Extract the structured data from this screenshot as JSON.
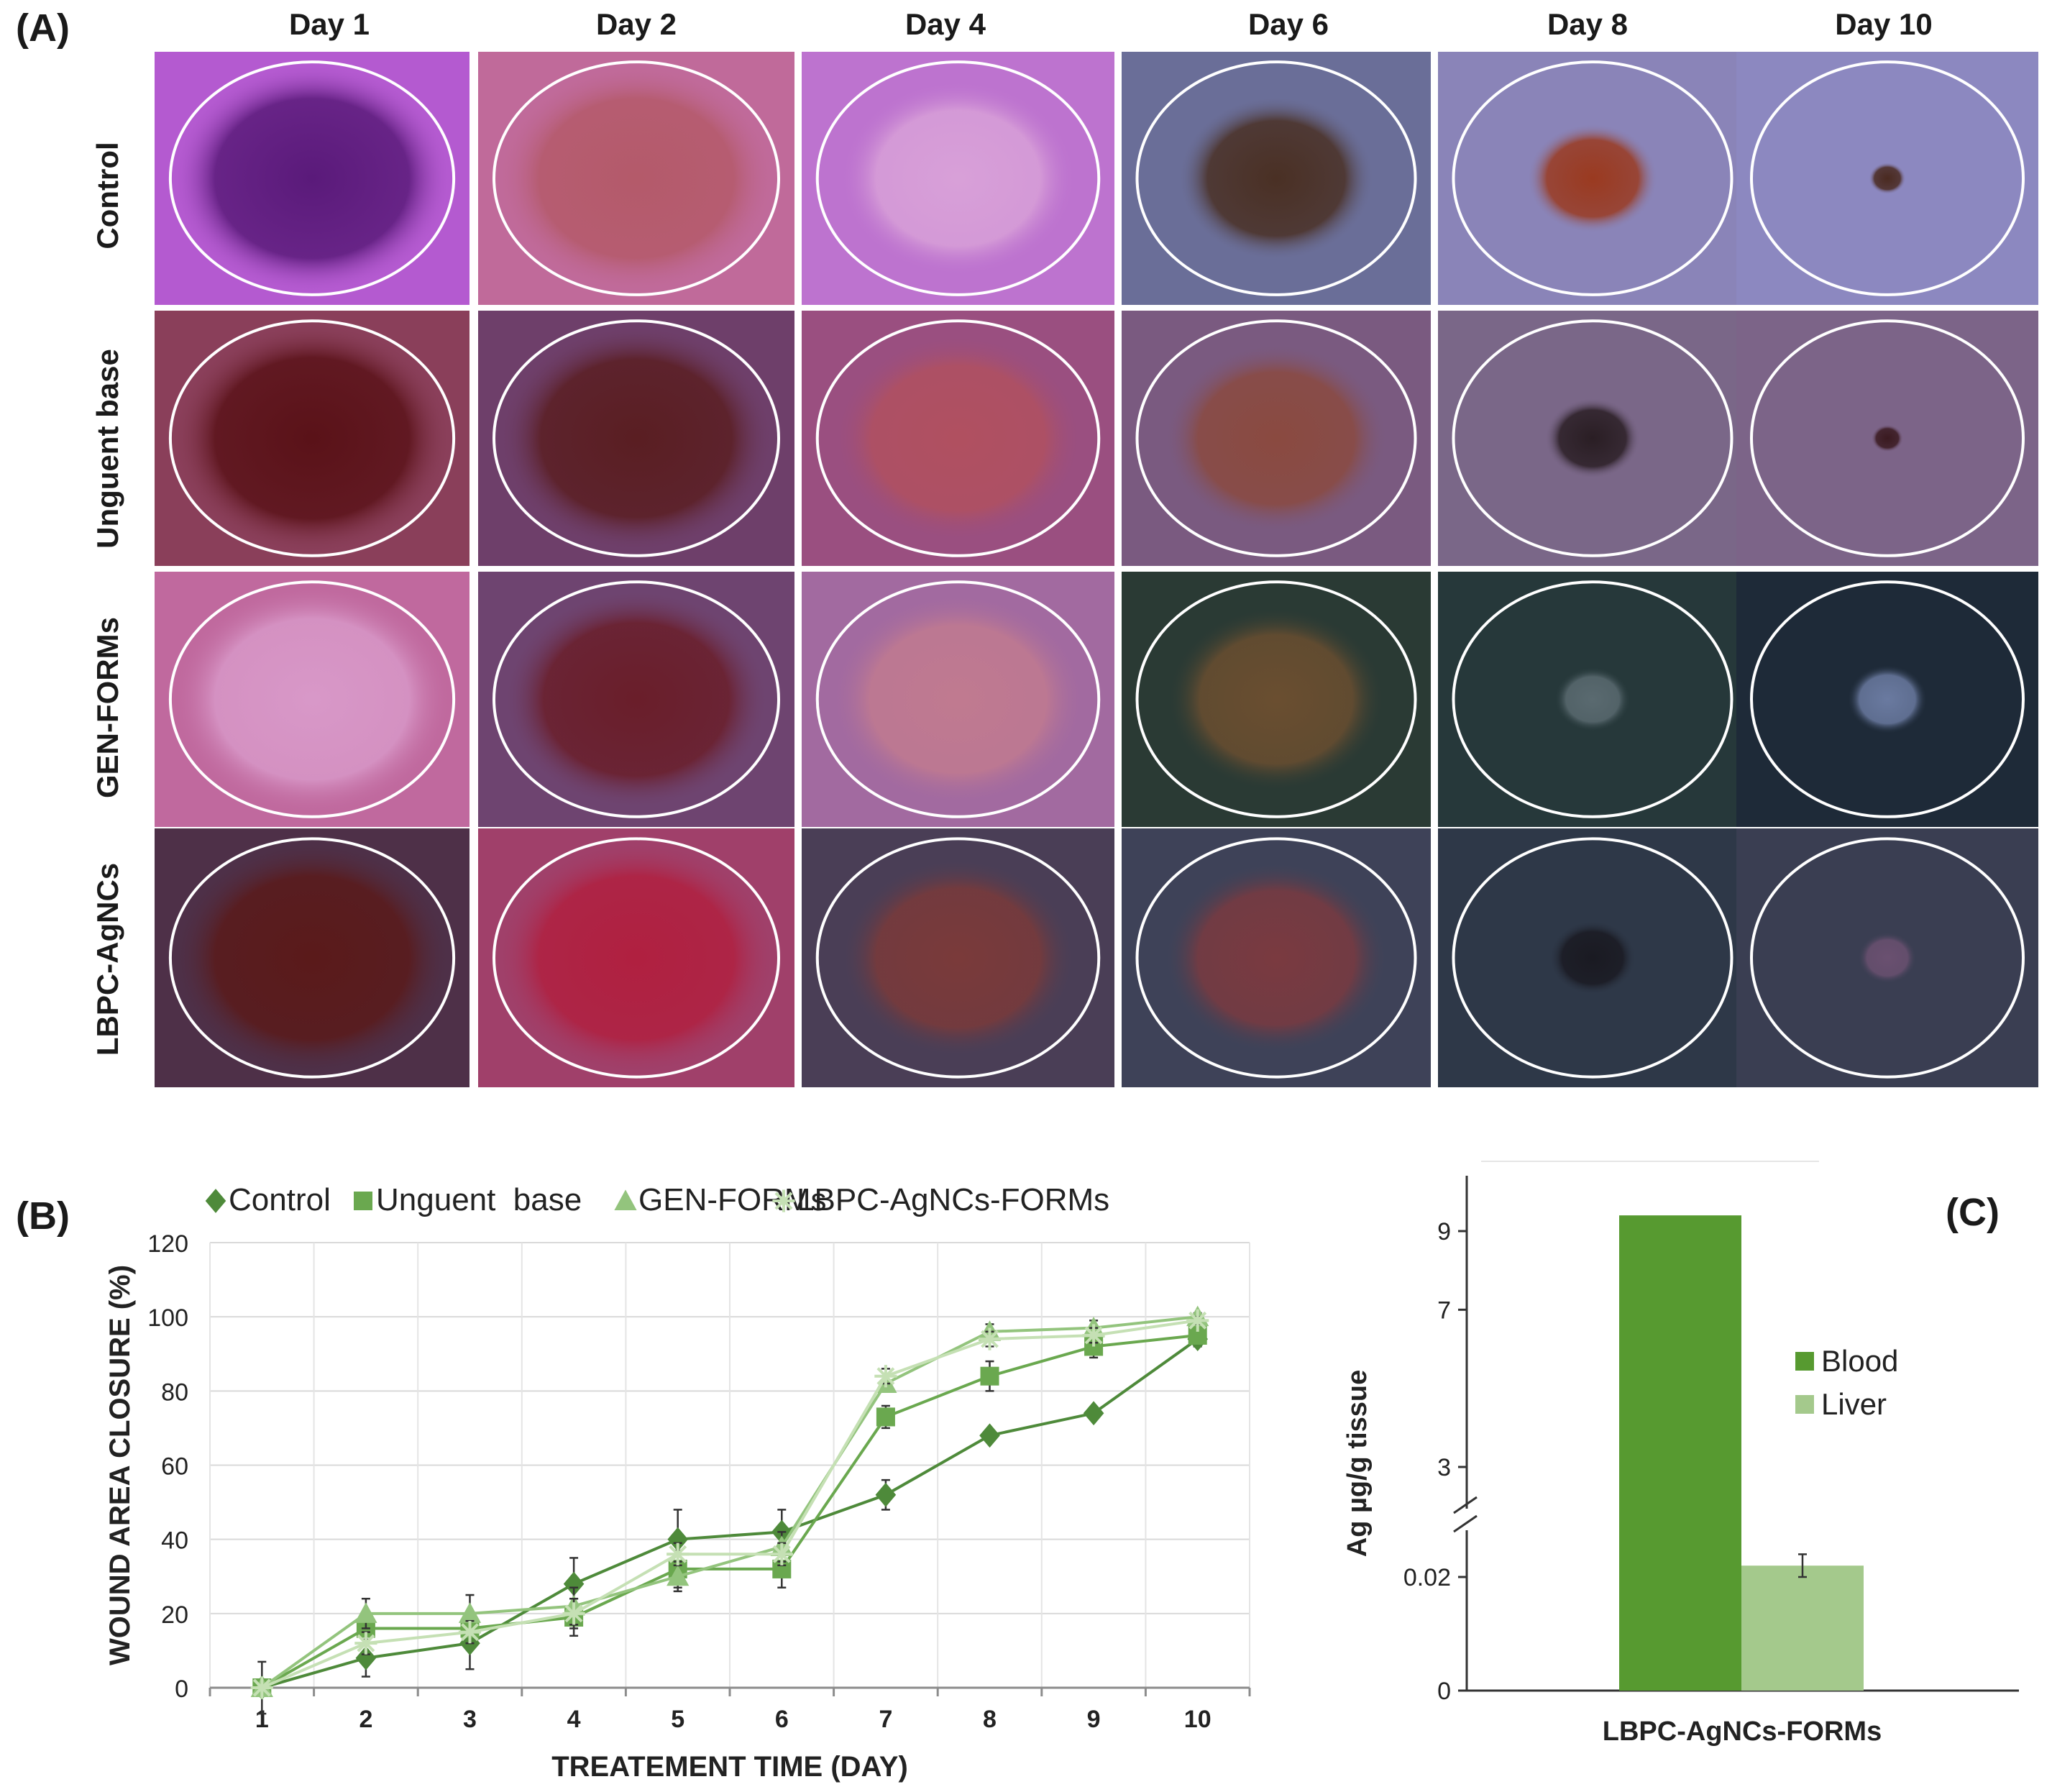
{
  "panel_a": {
    "letter": "(A)",
    "days": [
      "Day 1",
      "Day 2",
      "Day 4",
      "Day 6",
      "Day 8",
      "Day 10"
    ],
    "groups": [
      "Control",
      "Unguent  base",
      "GEN-FORMs",
      "LBPC-AgNCs"
    ],
    "photo_tones": [
      [
        "#b45ad0",
        "#c06a9a",
        "#bd73cf",
        "#6a6e98",
        "#8a84b8",
        "#8c88c0"
      ],
      [
        "#8a3f5a",
        "#6e3f6a",
        "#9a4f80",
        "#7a5a80",
        "#7a6788",
        "#7c6488"
      ],
      [
        "#c0699e",
        "#6e4470",
        "#a26aa0",
        "#2a3a34",
        "#26383a",
        "#1e2a38"
      ],
      [
        "#4e3048",
        "#a0406a",
        "#4a3e56",
        "#3e4258",
        "#2e3848",
        "#3a3e52"
      ]
    ],
    "wound_tones": [
      [
        "#5a1a7a",
        "#b45a6a",
        "#d8a0d8",
        "#4a3024",
        "#9a3a20",
        "#4a2a20"
      ],
      [
        "#5a1218",
        "#5a1e22",
        "#b05060",
        "#8a4a40",
        "#2a1e24",
        "#3a1a20"
      ],
      [
        "#d898c8",
        "#6a1e2a",
        "#c07a90",
        "#6a4e30",
        "#5a6a70",
        "#6a7aa0"
      ],
      [
        "#5a1a1a",
        "#b02040",
        "#7a3a3a",
        "#7a3a40",
        "#1a1a22",
        "#6a5070"
      ]
    ],
    "wound_scale": [
      [
        1.0,
        1.0,
        0.85,
        0.72,
        0.48,
        0.14
      ],
      [
        1.0,
        0.98,
        0.9,
        0.82,
        0.35,
        0.12
      ],
      [
        1.0,
        0.95,
        0.92,
        0.8,
        0.28,
        0.3
      ],
      [
        1.0,
        1.0,
        0.85,
        0.82,
        0.32,
        0.22
      ]
    ]
  },
  "panel_b": {
    "letter": "(B)",
    "chart_data": {
      "type": "line",
      "title": "",
      "xlabel": "TREATEMENT TIME (DAY)",
      "ylabel": "WOUND AREA CLOSURE (%)",
      "x": [
        1,
        2,
        3,
        4,
        5,
        6,
        7,
        8,
        9,
        10
      ],
      "ylim": [
        0,
        120
      ],
      "yticks": [
        0,
        20,
        40,
        60,
        80,
        100,
        120
      ],
      "grid": true,
      "legend": "top",
      "series": [
        {
          "name": "Control",
          "marker": "diamond",
          "color": "#4e8a3a",
          "values": [
            0,
            8,
            12,
            28,
            40,
            42,
            52,
            68,
            74,
            94
          ],
          "errors": [
            7,
            5,
            7,
            7,
            8,
            6,
            4,
            0,
            0,
            2
          ]
        },
        {
          "name": "Unguent  base",
          "marker": "square",
          "color": "#6aa84f",
          "values": [
            0,
            16,
            16,
            19,
            32,
            32,
            73,
            84,
            92,
            95
          ],
          "errors": [
            0,
            4,
            4,
            5,
            5,
            5,
            3,
            4,
            3,
            2
          ]
        },
        {
          "name": "GEN-FORMs",
          "marker": "triangle",
          "color": "#93c47d",
          "values": [
            0,
            20,
            20,
            22,
            30,
            38,
            82,
            96,
            97,
            100
          ],
          "errors": [
            0,
            4,
            5,
            5,
            4,
            4,
            2,
            2,
            2,
            1
          ]
        },
        {
          "name": "LBPC-AgNCs-FORMs",
          "marker": "asterisk",
          "color": "#c5e0b4",
          "values": [
            0,
            12,
            15,
            20,
            36,
            36,
            84,
            94,
            95,
            99
          ],
          "errors": [
            0,
            3,
            3,
            4,
            3,
            3,
            2,
            2,
            2,
            1
          ]
        }
      ]
    }
  },
  "panel_c": {
    "letter": "(C)",
    "chart_data": {
      "type": "bar",
      "title": "",
      "xlabel": "LBPC-AgNCs-FORMs",
      "ylabel": "Ag µg/g tissue",
      "categories": [
        "LBPC-AgNCs-FORMs"
      ],
      "axis_break": true,
      "yticks": [
        "0",
        "0.02",
        "3",
        "7",
        "9"
      ],
      "legend": "right",
      "series": [
        {
          "name": "Blood",
          "color": "#579a30",
          "values": [
            9.4
          ],
          "errors": [
            0
          ]
        },
        {
          "name": "Liver",
          "color": "#a4c98c",
          "values": [
            0.022
          ],
          "errors": [
            0.002
          ]
        }
      ]
    }
  }
}
